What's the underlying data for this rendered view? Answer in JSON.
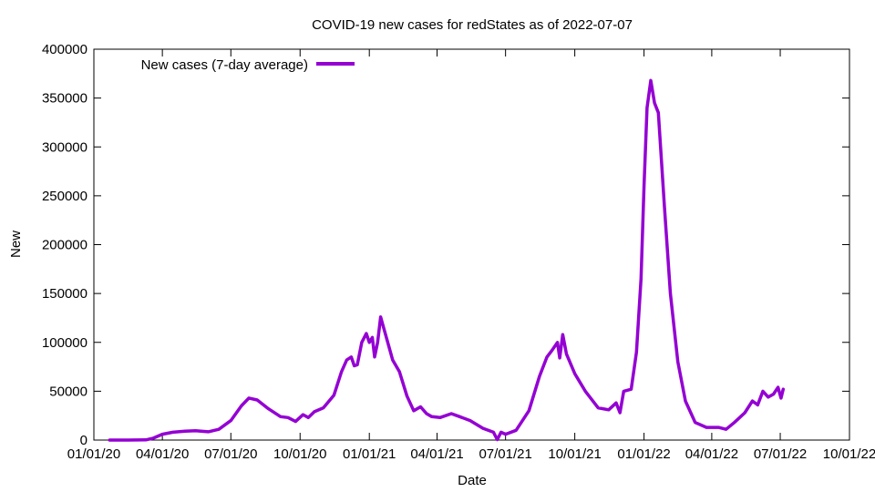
{
  "chart_data": {
    "type": "line",
    "title": "COVID-19 new cases for redStates as of 2022-07-07",
    "xlabel": "Date",
    "ylabel": "New",
    "ylim": [
      0,
      400000
    ],
    "xlim": [
      "2020-01-01",
      "2022-10-01"
    ],
    "y_ticks": [
      0,
      50000,
      100000,
      150000,
      200000,
      250000,
      300000,
      350000,
      400000
    ],
    "y_tick_labels": [
      "0",
      "50000",
      "100000",
      "150000",
      "200000",
      "250000",
      "300000",
      "350000",
      "400000"
    ],
    "x_ticks": [
      "2020-01-01",
      "2020-04-01",
      "2020-07-01",
      "2020-10-01",
      "2021-01-01",
      "2021-04-01",
      "2021-07-01",
      "2021-10-01",
      "2022-01-01",
      "2022-04-01",
      "2022-07-01",
      "2022-10-01"
    ],
    "x_tick_labels": [
      "01/01/20",
      "04/01/20",
      "07/01/20",
      "10/01/20",
      "01/01/21",
      "04/01/21",
      "07/01/21",
      "10/01/21",
      "01/01/22",
      "04/01/22",
      "07/01/22",
      "10/01/22"
    ],
    "grid": false,
    "legend_position": "top-left",
    "series": [
      {
        "name": "New cases (7-day average)",
        "color": "#9400d3",
        "points": [
          [
            "2020-01-22",
            0
          ],
          [
            "2020-02-15",
            0
          ],
          [
            "2020-03-10",
            200
          ],
          [
            "2020-03-20",
            2000
          ],
          [
            "2020-04-01",
            6000
          ],
          [
            "2020-04-15",
            8000
          ],
          [
            "2020-05-01",
            9000
          ],
          [
            "2020-05-15",
            9500
          ],
          [
            "2020-06-01",
            8500
          ],
          [
            "2020-06-15",
            11000
          ],
          [
            "2020-07-01",
            20000
          ],
          [
            "2020-07-15",
            35000
          ],
          [
            "2020-07-25",
            43000
          ],
          [
            "2020-08-05",
            41000
          ],
          [
            "2020-08-20",
            32000
          ],
          [
            "2020-09-05",
            24000
          ],
          [
            "2020-09-15",
            23000
          ],
          [
            "2020-09-25",
            19000
          ],
          [
            "2020-10-05",
            26000
          ],
          [
            "2020-10-12",
            23000
          ],
          [
            "2020-10-20",
            29000
          ],
          [
            "2020-11-01",
            33000
          ],
          [
            "2020-11-15",
            46000
          ],
          [
            "2020-11-25",
            70000
          ],
          [
            "2020-12-02",
            82000
          ],
          [
            "2020-12-08",
            85000
          ],
          [
            "2020-12-12",
            76000
          ],
          [
            "2020-12-16",
            77000
          ],
          [
            "2020-12-22",
            100000
          ],
          [
            "2020-12-28",
            109000
          ],
          [
            "2021-01-01",
            100000
          ],
          [
            "2021-01-05",
            105000
          ],
          [
            "2021-01-08",
            85000
          ],
          [
            "2021-01-12",
            100000
          ],
          [
            "2021-01-16",
            126000
          ],
          [
            "2021-01-20",
            115000
          ],
          [
            "2021-02-01",
            82000
          ],
          [
            "2021-02-10",
            70000
          ],
          [
            "2021-02-20",
            45000
          ],
          [
            "2021-03-01",
            30000
          ],
          [
            "2021-03-10",
            34000
          ],
          [
            "2021-03-18",
            27000
          ],
          [
            "2021-03-25",
            24000
          ],
          [
            "2021-04-05",
            23000
          ],
          [
            "2021-04-20",
            27000
          ],
          [
            "2021-05-01",
            24000
          ],
          [
            "2021-05-15",
            20000
          ],
          [
            "2021-06-01",
            12000
          ],
          [
            "2021-06-15",
            8000
          ],
          [
            "2021-06-20",
            500
          ],
          [
            "2021-06-25",
            8000
          ],
          [
            "2021-07-01",
            6000
          ],
          [
            "2021-07-15",
            10000
          ],
          [
            "2021-08-01",
            30000
          ],
          [
            "2021-08-15",
            65000
          ],
          [
            "2021-08-25",
            85000
          ],
          [
            "2021-09-01",
            92000
          ],
          [
            "2021-09-08",
            100000
          ],
          [
            "2021-09-11",
            84000
          ],
          [
            "2021-09-15",
            108000
          ],
          [
            "2021-09-20",
            88000
          ],
          [
            "2021-10-01",
            68000
          ],
          [
            "2021-10-15",
            50000
          ],
          [
            "2021-11-01",
            33000
          ],
          [
            "2021-11-15",
            31000
          ],
          [
            "2021-11-25",
            38000
          ],
          [
            "2021-11-30",
            28000
          ],
          [
            "2021-12-05",
            50000
          ],
          [
            "2021-12-15",
            52000
          ],
          [
            "2021-12-22",
            90000
          ],
          [
            "2021-12-28",
            165000
          ],
          [
            "2022-01-01",
            260000
          ],
          [
            "2022-01-05",
            340000
          ],
          [
            "2022-01-10",
            368000
          ],
          [
            "2022-01-15",
            345000
          ],
          [
            "2022-01-20",
            335000
          ],
          [
            "2022-01-28",
            240000
          ],
          [
            "2022-02-05",
            150000
          ],
          [
            "2022-02-15",
            80000
          ],
          [
            "2022-02-25",
            40000
          ],
          [
            "2022-03-10",
            18000
          ],
          [
            "2022-03-25",
            13000
          ],
          [
            "2022-04-10",
            13000
          ],
          [
            "2022-04-20",
            11000
          ],
          [
            "2022-05-01",
            18000
          ],
          [
            "2022-05-15",
            28000
          ],
          [
            "2022-05-25",
            40000
          ],
          [
            "2022-06-01",
            36000
          ],
          [
            "2022-06-08",
            50000
          ],
          [
            "2022-06-15",
            44000
          ],
          [
            "2022-06-22",
            47000
          ],
          [
            "2022-06-28",
            54000
          ],
          [
            "2022-07-02",
            43000
          ],
          [
            "2022-07-05",
            52000
          ]
        ]
      }
    ]
  }
}
